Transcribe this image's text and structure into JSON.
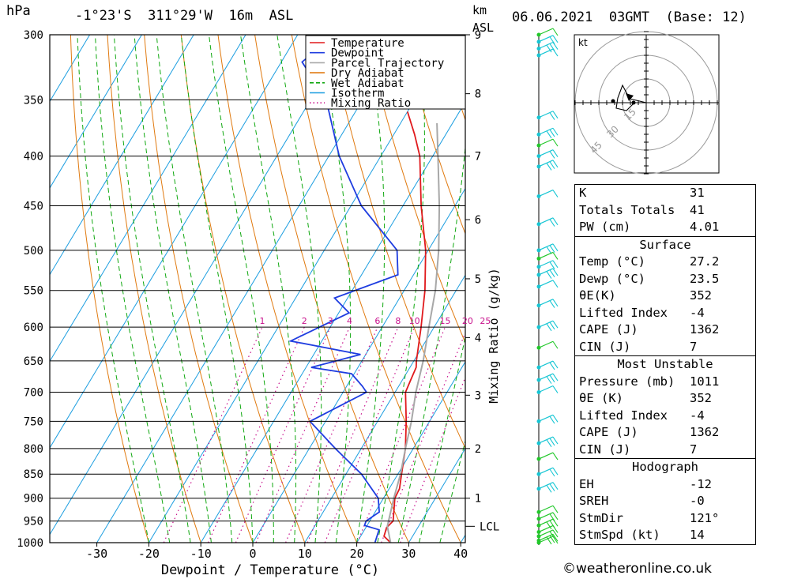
{
  "header": {
    "location": "-1°23'S  311°29'W  16m  ASL",
    "datetime": "06.06.2021  03GMT  (Base: 12)",
    "p_unit": "hPa",
    "km_unit": "km",
    "asl_unit": "ASL"
  },
  "chart_data": {
    "type": "line",
    "title": "-1°23'S  311°29'W  16m  ASL",
    "xlabel": "Dewpoint / Temperature (°C)",
    "ylabel": "hPa",
    "right_label": "Mixing Ratio (g/kg)",
    "x_ticks": [
      -30,
      -20,
      -10,
      0,
      10,
      20,
      30,
      40
    ],
    "p_ticks": [
      300,
      350,
      400,
      450,
      500,
      550,
      600,
      650,
      700,
      750,
      800,
      850,
      900,
      950,
      1000
    ],
    "km_ticks": [
      1,
      2,
      3,
      4,
      5,
      6,
      7,
      8,
      9
    ],
    "lcl_label": "LCL",
    "lcl_pressure": 962,
    "mixing_ratio_labels": [
      "1",
      "2",
      "3",
      "4",
      "6",
      "8",
      "10",
      "15",
      "20",
      "25"
    ],
    "legend": [
      {
        "name": "Temperature",
        "color": "#e0191c",
        "style": "solid"
      },
      {
        "name": "Dewpoint",
        "color": "#1f3de0",
        "style": "solid"
      },
      {
        "name": "Parcel Trajectory",
        "color": "#a8a8a8",
        "style": "solid"
      },
      {
        "name": "Dry Adiabat",
        "color": "#e07a10",
        "style": "solid"
      },
      {
        "name": "Wet Adiabat",
        "color": "#10a810",
        "style": "dashed"
      },
      {
        "name": "Isotherm",
        "color": "#1a9de0",
        "style": "solid"
      },
      {
        "name": "Mixing Ratio",
        "color": "#c8108c",
        "style": "dotted"
      }
    ],
    "series": [
      {
        "name": "Temperature",
        "color": "#e0191c",
        "points": [
          [
            1000,
            26.5
          ],
          [
            985,
            24.5
          ],
          [
            965,
            24.0
          ],
          [
            950,
            24.5
          ],
          [
            930,
            23.6
          ],
          [
            900,
            22.2
          ],
          [
            880,
            22.0
          ],
          [
            850,
            20.7
          ],
          [
            800,
            18.5
          ],
          [
            750,
            15.5
          ],
          [
            700,
            12.0
          ],
          [
            680,
            11.6
          ],
          [
            660,
            11.2
          ],
          [
            650,
            10.5
          ],
          [
            600,
            7.5
          ],
          [
            550,
            4.0
          ],
          [
            500,
            -0.5
          ],
          [
            450,
            -6.5
          ],
          [
            400,
            -12.5
          ],
          [
            380,
            -16.0
          ],
          [
            360,
            -20.0
          ]
        ]
      },
      {
        "name": "Dewpoint",
        "color": "#1f3de0",
        "points": [
          [
            1000,
            23.5
          ],
          [
            970,
            22.8
          ],
          [
            960,
            19.5
          ],
          [
            950,
            19.3
          ],
          [
            930,
            20.8
          ],
          [
            900,
            19.0
          ],
          [
            850,
            13.0
          ],
          [
            800,
            5.0
          ],
          [
            750,
            -3.0
          ],
          [
            700,
            4.5
          ],
          [
            690,
            3.0
          ],
          [
            670,
            -0.5
          ],
          [
            660,
            -9.0
          ],
          [
            640,
            -1.0
          ],
          [
            620,
            -16.0
          ],
          [
            580,
            -8.0
          ],
          [
            560,
            -12.5
          ],
          [
            530,
            -3.0
          ],
          [
            500,
            -6.0
          ],
          [
            450,
            -18.0
          ],
          [
            400,
            -28.0
          ],
          [
            350,
            -37.0
          ],
          [
            320,
            -46.0
          ],
          [
            300,
            -43.0
          ]
        ]
      },
      {
        "name": "Parcel Trajectory",
        "color": "#a8a8a8",
        "points": [
          [
            1000,
            26.5
          ],
          [
            962,
            24.0
          ],
          [
            900,
            22.0
          ],
          [
            850,
            20.5
          ],
          [
            800,
            18.5
          ],
          [
            750,
            16.5
          ],
          [
            700,
            14.0
          ],
          [
            650,
            11.8
          ],
          [
            600,
            9.0
          ],
          [
            550,
            6.0
          ],
          [
            500,
            2.0
          ],
          [
            450,
            -3.0
          ],
          [
            400,
            -9.0
          ],
          [
            370,
            -13.0
          ]
        ]
      }
    ],
    "grid": true,
    "legend_position": "top-right"
  },
  "hodograph": {
    "unit_label": "kt",
    "ring_labels": [
      "15",
      "30",
      "45"
    ]
  },
  "wind_profile": {
    "color": "#17c6d4",
    "levels": [
      300,
      350,
      400,
      450,
      500,
      550,
      600,
      650,
      700,
      750,
      800,
      850,
      900,
      950,
      1000
    ]
  },
  "indices": {
    "k_label": "K",
    "k_value": "31",
    "tt_label": "Totals Totals",
    "tt_value": "41",
    "pw_label": "PW (cm)",
    "pw_value": "4.01",
    "surface_title": "Surface",
    "sfc_temp_label": "Temp (°C)",
    "sfc_temp_value": "27.2",
    "sfc_dewp_label": "Dewp (°C)",
    "sfc_dewp_value": "23.5",
    "sfc_thetae_label": "θE(K)",
    "sfc_thetae_value": "352",
    "sfc_li_label": "Lifted Index",
    "sfc_li_value": "-4",
    "sfc_cape_label": "CAPE (J)",
    "sfc_cape_value": "1362",
    "sfc_cin_label": "CIN (J)",
    "sfc_cin_value": "7",
    "mu_title": "Most Unstable",
    "mu_p_label": "Pressure (mb)",
    "mu_p_value": "1011",
    "mu_thetae_label": "θE (K)",
    "mu_thetae_value": "352",
    "mu_li_label": "Lifted Index",
    "mu_li_value": "-4",
    "mu_cape_label": "CAPE (J)",
    "mu_cape_value": "1362",
    "mu_cin_label": "CIN (J)",
    "mu_cin_value": "7",
    "hodo_title": "Hodograph",
    "eh_label": "EH",
    "eh_value": "-12",
    "sreh_label": "SREH",
    "sreh_value": "-0",
    "stmdir_label": "StmDir",
    "stmdir_value": "121°",
    "stmspd_label": "StmSpd (kt)",
    "stmspd_value": "14"
  },
  "footer": {
    "copyright": "©weatheronline.co.uk"
  }
}
